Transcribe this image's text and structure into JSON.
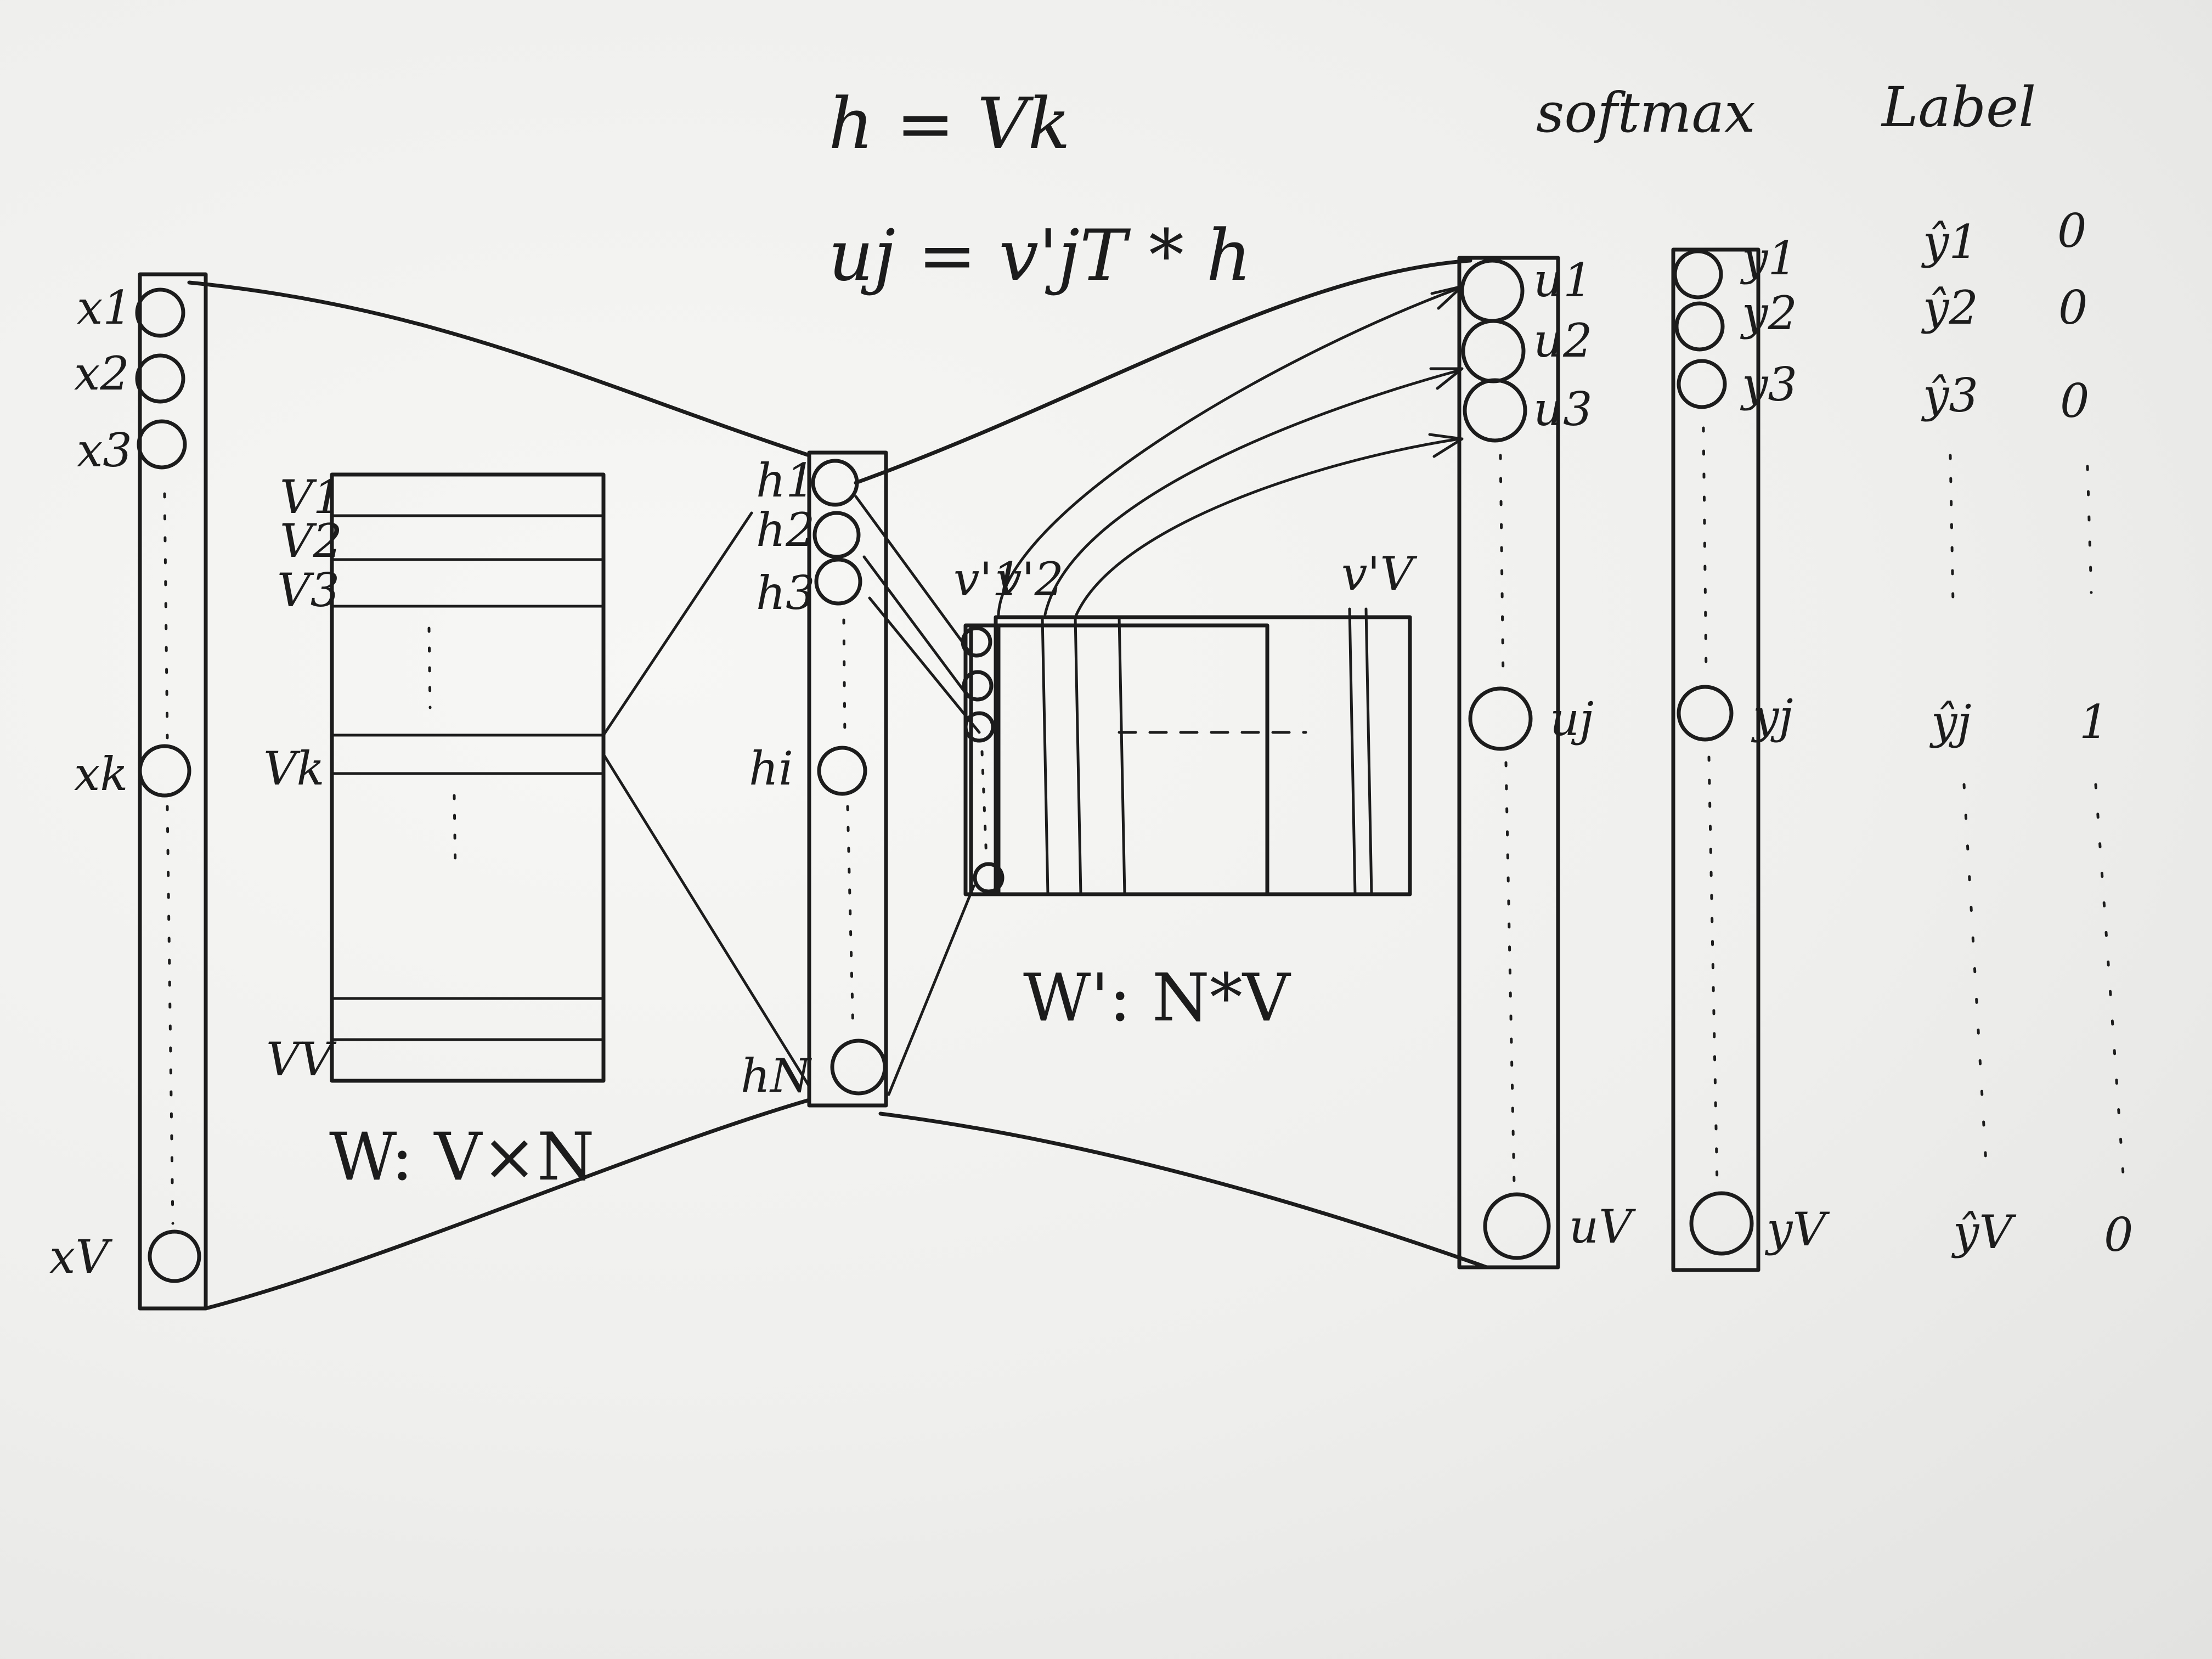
{
  "formulas": {
    "h_def": "h = Vk",
    "u_def": "uj = v'jT * h"
  },
  "headers": {
    "softmax": "softmax",
    "label": "Label"
  },
  "input_layer": {
    "nodes": [
      "x1",
      "x2",
      "x3",
      "xk",
      "xV"
    ]
  },
  "input_matrix": {
    "rows": [
      "V1",
      "V2",
      "V3",
      "Vk",
      "VV"
    ],
    "caption": "W: V×N"
  },
  "hidden_layer": {
    "nodes": [
      "h1",
      "h2",
      "h3",
      "hi",
      "hN"
    ]
  },
  "output_matrix": {
    "columns": [
      "v'1",
      "v'2",
      "v'V"
    ],
    "caption": "W': N*V"
  },
  "score_layer": {
    "nodes": [
      "u1",
      "u2",
      "u3",
      "uj",
      "uV"
    ]
  },
  "softmax_layer": {
    "nodes": [
      "y1",
      "y2",
      "y3",
      "yj",
      "yV"
    ]
  },
  "predictions": [
    "ŷ1",
    "ŷ2",
    "ŷ3",
    "ŷj",
    "ŷV"
  ],
  "labels": [
    "0",
    "0",
    "0",
    "1",
    "0"
  ]
}
